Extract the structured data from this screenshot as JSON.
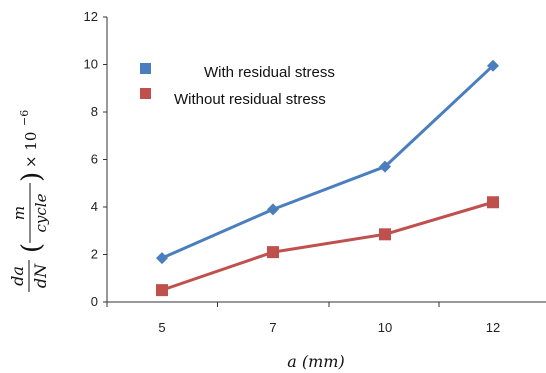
{
  "chart_data": {
    "type": "line",
    "categories": [
      "5",
      "7",
      "10",
      "12"
    ],
    "series": [
      {
        "name": "With residual stress",
        "values": [
          1.85,
          3.9,
          5.7,
          9.95
        ],
        "color": "#4a7ebf",
        "marker": "diamond"
      },
      {
        "name": "Without residual stress",
        "values": [
          0.5,
          2.1,
          2.85,
          4.2
        ],
        "color": "#c0504d",
        "marker": "square"
      }
    ],
    "ylim": [
      0,
      12
    ],
    "yticks": [
      "0",
      "2",
      "4",
      "6",
      "8",
      "10",
      "12"
    ],
    "xlabel": "a (mm)",
    "ylabel": {
      "numerator": "da",
      "denominator": "dN",
      "unit_numerator": "m",
      "unit_denominator": "cycle",
      "multiplier": "× 10",
      "exponent": "−6"
    },
    "grid": false,
    "legend_position": "top-left"
  }
}
